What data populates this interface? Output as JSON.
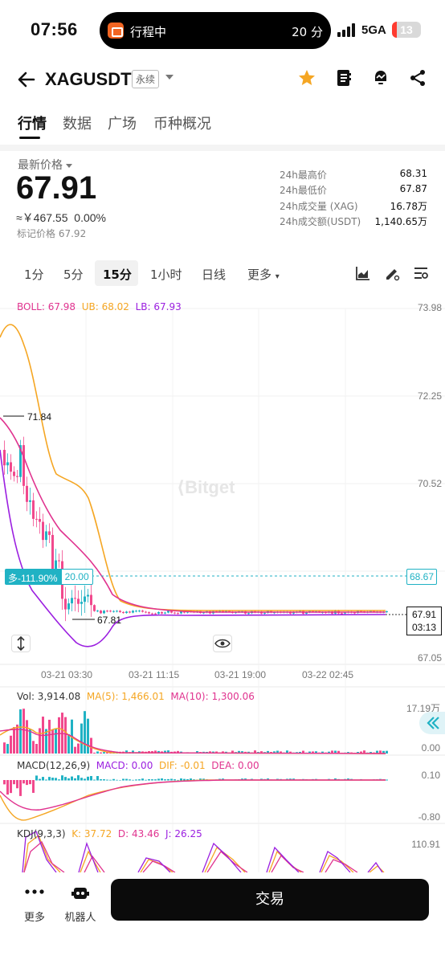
{
  "status_bar": {
    "time": "07:56",
    "live_activity_title": "行程中",
    "live_activity_eta": "20 分",
    "network": "5GA",
    "battery": "13"
  },
  "header": {
    "symbol": "XAGUSDT",
    "contract_type": "永续",
    "icons": [
      "back-arrow-icon",
      "star-icon",
      "notebook-icon",
      "price-alert-icon",
      "share-icon"
    ],
    "star_color": "#f5a623"
  },
  "tabs": [
    "行情",
    "数据",
    "广场",
    "币种概况"
  ],
  "price": {
    "label": "最新价格",
    "last": "67.91",
    "fiat": "≈￥467.55",
    "change": "0.00%",
    "mark_label": "标记价格",
    "mark": "67.92"
  },
  "stats": [
    {
      "label": "24h最高价",
      "value": "68.31"
    },
    {
      "label": "24h最低价",
      "value": "67.87"
    },
    {
      "label": "24h成交量 (XAG)",
      "value": "16.78万"
    },
    {
      "label": "24h成交额(USDT)",
      "value": "1,140.65万"
    }
  ],
  "intervals": {
    "items": [
      "1分",
      "5分",
      "15分",
      "1小时",
      "日线",
      "更多"
    ],
    "active": "15分"
  },
  "chart": {
    "boll_legend": {
      "boll": "BOLL: 67.98",
      "ub": "UB: 68.02",
      "lb": "LB: 67.93"
    },
    "price_axis": [
      "73.98",
      "72.25",
      "70.52",
      "68.67",
      "67.05"
    ],
    "max_marker": "71.84",
    "min_marker": "67.81",
    "position_side": "多-111.90%",
    "position_leverage": "20.00",
    "position_price": "68.67",
    "last_price": "67.91",
    "countdown": "03:13",
    "watermark": "Bitget",
    "time_axis": [
      "03-21 03:30",
      "03-21 11:15",
      "03-21 19:00",
      "03-22 02:45"
    ],
    "vol_legend": {
      "vol": "Vol: 3,914.08",
      "ma5": "MA(5): 1,466.01",
      "ma10": "MA(10): 1,300.06"
    },
    "vol_axis": [
      "17.19万",
      "0.00"
    ],
    "macd_legend": {
      "name": "MACD(12,26,9)",
      "macd": "MACD: 0.00",
      "dif": "DIF: -0.01",
      "dea": "DEA: 0.00"
    },
    "macd_axis": [
      "0.10",
      "-0.80"
    ],
    "kdj_legend": {
      "name": "KDJ(9,3,3)",
      "k": "K: 37.72",
      "d": "D: 43.46",
      "j": "J: 26.25"
    },
    "kdj_axis": [
      "110.91"
    ],
    "colors": {
      "up": "#20b2c4",
      "down": "#f1498d",
      "boll": "#e0338f",
      "ub": "#f5a623",
      "lb": "#9b1fe0"
    }
  },
  "bottom": {
    "more": "更多",
    "robot": "机器人",
    "trade": "交易"
  }
}
